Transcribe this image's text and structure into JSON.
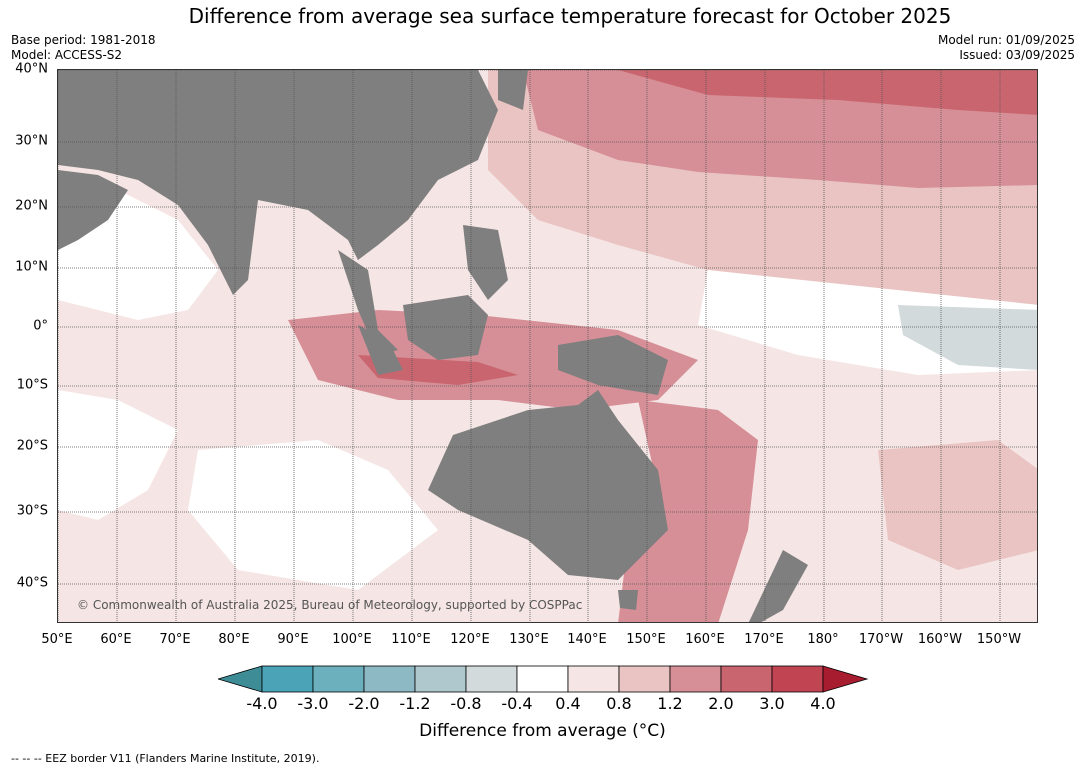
{
  "title": "Difference from average sea surface temperature forecast for October 2025",
  "meta": {
    "base_period": "Base period: 1981-2018",
    "model": "Model: ACCESS-S2",
    "model_run": "Model run: 01/09/2025",
    "issued": "Issued: 03/09/2025"
  },
  "latitudes": [
    "40°N",
    "30°N",
    "20°N",
    "10°N",
    "0°",
    "10°S",
    "20°S",
    "30°S",
    "40°S"
  ],
  "longitudes": [
    "50°E",
    "60°E",
    "70°E",
    "80°E",
    "90°E",
    "100°E",
    "110°E",
    "120°E",
    "130°E",
    "140°E",
    "150°E",
    "160°E",
    "170°E",
    "180°",
    "170°W",
    "160°W",
    "150°W"
  ],
  "copyright": "© Commonwealth of Australia 2025, Bureau of Meteorology, supported by COSPPac",
  "colorbar": {
    "ticks": [
      "-4.0",
      "-3.0",
      "-2.0",
      "-1.2",
      "-0.8",
      "-0.4",
      "0.4",
      "0.8",
      "1.2",
      "2.0",
      "3.0",
      "4.0"
    ],
    "colors": [
      "#3d8c96",
      "#4aa3b6",
      "#6cafbd",
      "#8cb9c4",
      "#afc8cd",
      "#d2dadc",
      "#ffffff",
      "#f5e6e5",
      "#e9c4c2",
      "#d68f96",
      "#c9656e",
      "#c04452",
      "#a81c30"
    ],
    "label": "Difference from average (°C)"
  },
  "footnote": "--  --  -- EEZ border V11 (Flanders Marine Institute, 2019).",
  "colors": {
    "land": "#7f7f7f",
    "grid": "#555555"
  }
}
